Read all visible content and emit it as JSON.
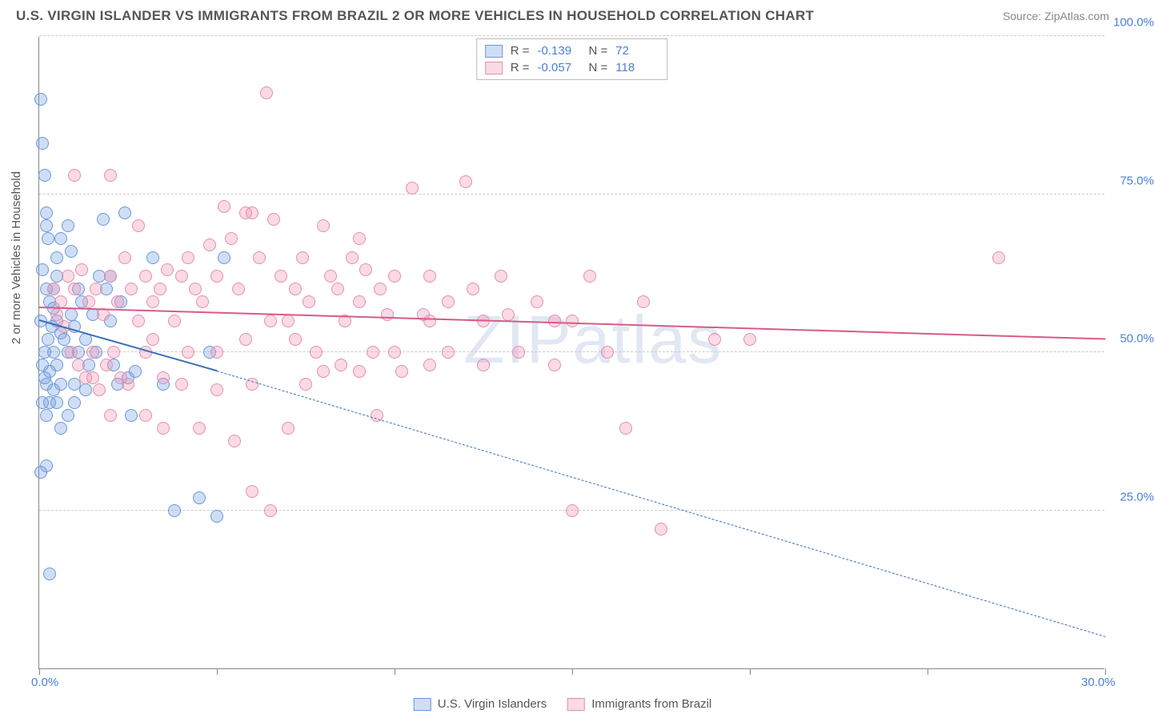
{
  "title": "U.S. VIRGIN ISLANDER VS IMMIGRANTS FROM BRAZIL 2 OR MORE VEHICLES IN HOUSEHOLD CORRELATION CHART",
  "source": "Source: ZipAtlas.com",
  "watermark": "ZIPatlas",
  "ylabel": "2 or more Vehicles in Household",
  "chart": {
    "type": "scatter",
    "xlim": [
      0,
      30
    ],
    "ylim": [
      0,
      100
    ],
    "x_ticks": [
      0,
      5,
      10,
      15,
      20,
      25,
      30
    ],
    "x_tick_labels": {
      "0": "0.0%",
      "30": "30.0%"
    },
    "y_gridlines": [
      25,
      50,
      75,
      100
    ],
    "y_tick_labels": {
      "25": "25.0%",
      "50": "50.0%",
      "75": "75.0%",
      "100": "100.0%"
    },
    "background_color": "#ffffff",
    "grid_color": "#cccccc",
    "axis_color": "#888888",
    "axis_label_color": "#4a7fd6",
    "point_radius": 8,
    "series": [
      {
        "name": "U.S. Virgin Islanders",
        "fill": "rgba(120,160,225,0.35)",
        "stroke": "#6a98d8",
        "trend_color": "#3b6fb5",
        "R": "-0.139",
        "N": "72",
        "trend": {
          "x1": 0,
          "y1": 55,
          "x2": 5,
          "y2": 47,
          "x2_ext": 30,
          "y2_ext": 5,
          "dashed_after": 5
        },
        "points": [
          [
            0.05,
            90
          ],
          [
            0.1,
            83
          ],
          [
            0.15,
            78
          ],
          [
            0.2,
            72
          ],
          [
            0.2,
            70
          ],
          [
            0.25,
            68
          ],
          [
            0.1,
            63
          ],
          [
            0.2,
            60
          ],
          [
            0.3,
            58
          ],
          [
            0.05,
            55
          ],
          [
            0.4,
            57
          ],
          [
            0.5,
            55
          ],
          [
            0.6,
            53
          ],
          [
            0.4,
            50
          ],
          [
            0.5,
            48
          ],
          [
            0.3,
            47
          ],
          [
            0.2,
            45
          ],
          [
            0.6,
            45
          ],
          [
            0.7,
            52
          ],
          [
            0.8,
            50
          ],
          [
            0.9,
            56
          ],
          [
            1.0,
            54
          ],
          [
            1.1,
            60
          ],
          [
            1.2,
            58
          ],
          [
            1.3,
            52
          ],
          [
            1.4,
            48
          ],
          [
            1.5,
            56
          ],
          [
            1.6,
            50
          ],
          [
            1.7,
            62
          ],
          [
            1.8,
            71
          ],
          [
            1.9,
            60
          ],
          [
            2.0,
            55
          ],
          [
            2.1,
            48
          ],
          [
            2.2,
            45
          ],
          [
            2.3,
            58
          ],
          [
            2.4,
            72
          ],
          [
            2.5,
            46
          ],
          [
            2.6,
            40
          ],
          [
            2.7,
            47
          ],
          [
            2.0,
            62
          ],
          [
            1.0,
            45
          ],
          [
            1.0,
            42
          ],
          [
            0.8,
            40
          ],
          [
            0.6,
            38
          ],
          [
            0.5,
            42
          ],
          [
            0.4,
            44
          ],
          [
            0.3,
            42
          ],
          [
            0.2,
            40
          ],
          [
            0.1,
            42
          ],
          [
            0.5,
            65
          ],
          [
            0.6,
            68
          ],
          [
            0.8,
            70
          ],
          [
            0.9,
            66
          ],
          [
            1.1,
            50
          ],
          [
            1.3,
            44
          ],
          [
            0.2,
            32
          ],
          [
            0.05,
            31
          ],
          [
            0.3,
            15
          ],
          [
            0.15,
            50
          ],
          [
            0.25,
            52
          ],
          [
            0.35,
            54
          ],
          [
            0.1,
            48
          ],
          [
            0.15,
            46
          ],
          [
            0.4,
            60
          ],
          [
            0.5,
            62
          ],
          [
            3.2,
            65
          ],
          [
            3.8,
            25
          ],
          [
            4.5,
            27
          ],
          [
            5.0,
            24
          ],
          [
            5.2,
            65
          ],
          [
            4.8,
            50
          ],
          [
            3.5,
            45
          ]
        ]
      },
      {
        "name": "Immigrants from Brazil",
        "fill": "rgba(240,150,180,0.35)",
        "stroke": "#e38fab",
        "trend_color": "#d85a8a",
        "R": "-0.057",
        "N": "118",
        "trend": {
          "x1": 0,
          "y1": 57,
          "x2": 30,
          "y2": 52
        },
        "points": [
          [
            0.4,
            60
          ],
          [
            0.6,
            58
          ],
          [
            0.8,
            62
          ],
          [
            1.0,
            60
          ],
          [
            1.2,
            63
          ],
          [
            1.4,
            58
          ],
          [
            1.6,
            60
          ],
          [
            1.8,
            56
          ],
          [
            2.0,
            62
          ],
          [
            2.2,
            58
          ],
          [
            2.4,
            65
          ],
          [
            2.6,
            60
          ],
          [
            2.8,
            70
          ],
          [
            3.0,
            62
          ],
          [
            3.2,
            58
          ],
          [
            3.4,
            60
          ],
          [
            3.6,
            63
          ],
          [
            3.8,
            55
          ],
          [
            4.0,
            62
          ],
          [
            4.2,
            65
          ],
          [
            4.4,
            60
          ],
          [
            4.6,
            58
          ],
          [
            4.8,
            67
          ],
          [
            5.0,
            62
          ],
          [
            5.2,
            73
          ],
          [
            5.4,
            68
          ],
          [
            5.6,
            60
          ],
          [
            5.8,
            72
          ],
          [
            6.0,
            72
          ],
          [
            6.2,
            65
          ],
          [
            6.4,
            91
          ],
          [
            6.6,
            71
          ],
          [
            6.8,
            62
          ],
          [
            7.0,
            55
          ],
          [
            7.2,
            60
          ],
          [
            7.4,
            65
          ],
          [
            7.6,
            58
          ],
          [
            7.8,
            50
          ],
          [
            8.0,
            47
          ],
          [
            8.2,
            62
          ],
          [
            8.4,
            60
          ],
          [
            8.6,
            55
          ],
          [
            8.8,
            65
          ],
          [
            9.0,
            58
          ],
          [
            9.2,
            63
          ],
          [
            9.4,
            50
          ],
          [
            9.6,
            60
          ],
          [
            9.8,
            56
          ],
          [
            10.0,
            62
          ],
          [
            10.2,
            47
          ],
          [
            10.5,
            76
          ],
          [
            10.8,
            56
          ],
          [
            11.0,
            62
          ],
          [
            11.5,
            58
          ],
          [
            12.0,
            77
          ],
          [
            12.2,
            60
          ],
          [
            12.5,
            55
          ],
          [
            13.0,
            62
          ],
          [
            13.5,
            50
          ],
          [
            14.0,
            58
          ],
          [
            14.5,
            48
          ],
          [
            15.0,
            55
          ],
          [
            15.5,
            62
          ],
          [
            16.0,
            50
          ],
          [
            16.5,
            38
          ],
          [
            17.0,
            58
          ],
          [
            1.0,
            78
          ],
          [
            2.0,
            78
          ],
          [
            3.0,
            50
          ],
          [
            3.5,
            46
          ],
          [
            4.0,
            45
          ],
          [
            4.5,
            38
          ],
          [
            5.0,
            44
          ],
          [
            5.5,
            36
          ],
          [
            6.0,
            28
          ],
          [
            6.5,
            25
          ],
          [
            7.0,
            38
          ],
          [
            2.5,
            45
          ],
          [
            3.0,
            40
          ],
          [
            3.5,
            38
          ],
          [
            1.5,
            46
          ],
          [
            2.0,
            40
          ],
          [
            0.5,
            56
          ],
          [
            0.7,
            54
          ],
          [
            0.9,
            50
          ],
          [
            1.1,
            48
          ],
          [
            1.3,
            46
          ],
          [
            1.5,
            50
          ],
          [
            1.7,
            44
          ],
          [
            1.9,
            48
          ],
          [
            2.1,
            50
          ],
          [
            2.3,
            46
          ],
          [
            6.0,
            45
          ],
          [
            7.5,
            45
          ],
          [
            8.5,
            48
          ],
          [
            9.0,
            47
          ],
          [
            9.5,
            40
          ],
          [
            10.0,
            50
          ],
          [
            11.0,
            48
          ],
          [
            19.0,
            52
          ],
          [
            20.0,
            52
          ],
          [
            15.0,
            25
          ],
          [
            17.5,
            22
          ],
          [
            27.0,
            65
          ],
          [
            8.0,
            70
          ],
          [
            9.0,
            68
          ],
          [
            11.0,
            55
          ],
          [
            12.5,
            48
          ],
          [
            13.2,
            56
          ],
          [
            4.2,
            50
          ],
          [
            5.0,
            50
          ],
          [
            5.8,
            52
          ],
          [
            6.5,
            55
          ],
          [
            7.2,
            52
          ],
          [
            2.8,
            55
          ],
          [
            3.2,
            52
          ],
          [
            11.5,
            50
          ],
          [
            14.5,
            55
          ]
        ]
      }
    ]
  },
  "legend_bottom": [
    "U.S. Virgin Islanders",
    "Immigrants from Brazil"
  ]
}
